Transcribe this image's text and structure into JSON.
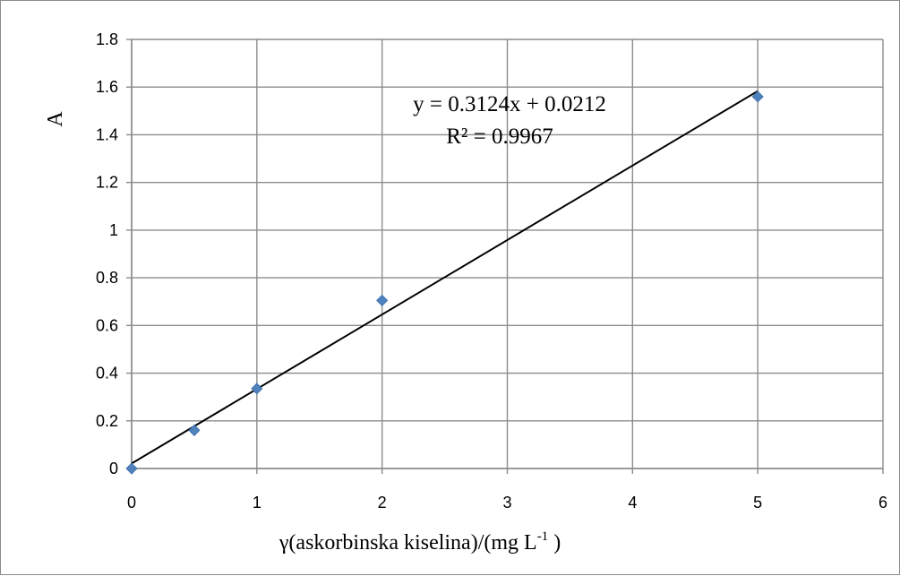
{
  "chart_data": {
    "type": "scatter",
    "title": "",
    "xlabel": "γ(askorbinska kiselina)/(mg L",
    "xlabel_superscript": "-1",
    "xlabel_suffix": " )",
    "ylabel": "A",
    "xlim": [
      0,
      6
    ],
    "ylim": [
      0,
      1.8
    ],
    "x_ticks": [
      "0",
      "1",
      "2",
      "3",
      "4",
      "5",
      "6"
    ],
    "y_ticks": [
      "0",
      "0.2",
      "0.4",
      "0.6",
      "0.8",
      "1",
      "1.2",
      "1.4",
      "1.6",
      "1.8"
    ],
    "grid": true,
    "legend": "none",
    "series": [
      {
        "x": [
          0,
          0.5,
          1,
          2,
          5
        ],
        "y": [
          0.0,
          0.16,
          0.335,
          0.705,
          1.56
        ],
        "marker": "diamond",
        "color": "#4f81bd"
      }
    ],
    "trendline": {
      "type": "linear",
      "slope": 0.3124,
      "intercept": 0.0212,
      "x_range": [
        0,
        5
      ],
      "color": "#000000"
    },
    "annotations": {
      "equation": "y = 0.3124x + 0.0212",
      "r_squared": "R² = 0.9967"
    }
  }
}
